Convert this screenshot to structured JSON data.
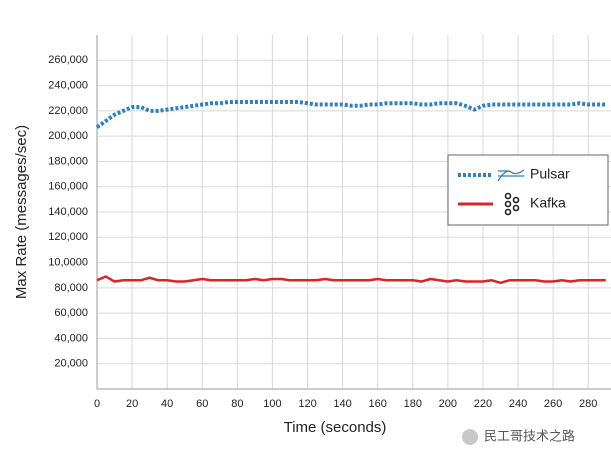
{
  "chart_data": {
    "type": "line",
    "x_label": "Time (seconds)",
    "y_label": "Max Rate (messages/sec)",
    "x": [
      0,
      5,
      10,
      15,
      20,
      25,
      30,
      35,
      40,
      45,
      50,
      55,
      60,
      65,
      70,
      75,
      80,
      85,
      90,
      95,
      100,
      105,
      110,
      115,
      120,
      125,
      130,
      135,
      140,
      145,
      150,
      155,
      160,
      165,
      170,
      175,
      180,
      185,
      190,
      195,
      200,
      205,
      210,
      215,
      220,
      225,
      230,
      235,
      240,
      245,
      250,
      255,
      260,
      265,
      270,
      275,
      280,
      285,
      290
    ],
    "series": [
      {
        "name": "Pulsar",
        "color": "#2f7fc1",
        "dashed": true,
        "values": [
          207000,
          212000,
          217000,
          220000,
          223000,
          223000,
          220000,
          220000,
          221000,
          222000,
          223000,
          224000,
          225000,
          226000,
          226000,
          227000,
          227000,
          227000,
          227000,
          227000,
          227000,
          227000,
          227000,
          227000,
          226000,
          225000,
          225000,
          225000,
          225000,
          224000,
          224000,
          225000,
          225000,
          226000,
          226000,
          226000,
          226000,
          225000,
          225000,
          226000,
          226000,
          226000,
          224000,
          221000,
          224000,
          225000,
          225000,
          225000,
          225000,
          225000,
          225000,
          225000,
          225000,
          225000,
          225000,
          226000,
          225000,
          225000,
          225000
        ]
      },
      {
        "name": "Kafka",
        "color": "#e0202a",
        "dashed": false,
        "values": [
          86000,
          89000,
          85000,
          86000,
          86000,
          86000,
          88000,
          86000,
          86000,
          85000,
          85000,
          86000,
          87000,
          86000,
          86000,
          86000,
          86000,
          86000,
          87000,
          86000,
          87000,
          87000,
          86000,
          86000,
          86000,
          86000,
          87000,
          86000,
          86000,
          86000,
          86000,
          86000,
          87000,
          86000,
          86000,
          86000,
          86000,
          85000,
          87000,
          86000,
          85000,
          86000,
          85000,
          85000,
          85000,
          86000,
          84000,
          86000,
          86000,
          86000,
          86000,
          85000,
          85000,
          86000,
          85000,
          86000,
          86000,
          86000,
          86000
        ]
      }
    ],
    "xlim": [
      0,
      293
    ],
    "ylim": [
      0,
      280000
    ],
    "xticks": [
      0,
      20,
      40,
      60,
      80,
      100,
      120,
      140,
      160,
      180,
      200,
      220,
      240,
      260,
      280
    ],
    "yticks": [
      {
        "value": 20000,
        "label": "20,000"
      },
      {
        "value": 40000,
        "label": "40,000"
      },
      {
        "value": 60000,
        "label": "60,000"
      },
      {
        "value": 80000,
        "label": "80,000"
      },
      {
        "value": 100000,
        "label": "10,0000"
      },
      {
        "value": 120000,
        "label": "120,000"
      },
      {
        "value": 140000,
        "label": "140,000"
      },
      {
        "value": 160000,
        "label": "160,000"
      },
      {
        "value": 180000,
        "label": "180,000"
      },
      {
        "value": 200000,
        "label": "200,000"
      },
      {
        "value": 220000,
        "label": "220,000"
      },
      {
        "value": 240000,
        "label": "240,000"
      },
      {
        "value": 260000,
        "label": "260,000"
      }
    ],
    "grid": true
  },
  "watermark": "民工哥技术之路"
}
